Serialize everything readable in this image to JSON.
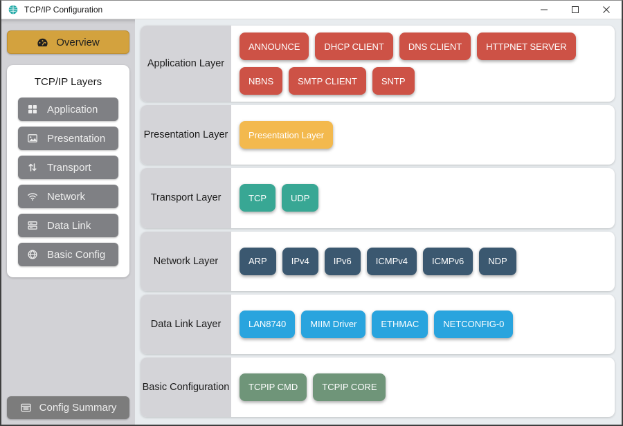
{
  "window": {
    "title": "TCP/IP Configuration",
    "icon": "network-globe-icon",
    "controls": [
      {
        "name": "minimize-button",
        "icon": "minimize-icon"
      },
      {
        "name": "maximize-button",
        "icon": "maximize-icon"
      },
      {
        "name": "close-button",
        "icon": "close-icon"
      }
    ]
  },
  "sidebar": {
    "overview": {
      "label": "Overview",
      "icon": "gauge-icon",
      "color": "#d3a23e"
    },
    "panel_title": "TCP/IP Layers",
    "items": [
      {
        "label": "Application",
        "icon": "grid-icon"
      },
      {
        "label": "Presentation",
        "icon": "image-icon"
      },
      {
        "label": "Transport",
        "icon": "transport-arrows-icon"
      },
      {
        "label": "Network",
        "icon": "wifi-icon"
      },
      {
        "label": "Data Link",
        "icon": "server-icon"
      },
      {
        "label": "Basic Config",
        "icon": "globe-icon"
      }
    ],
    "config_summary": {
      "label": "Config Summary",
      "icon": "list-icon"
    }
  },
  "layers": [
    {
      "name": "Application Layer",
      "color": "#cd5246",
      "modules": [
        "ANNOUNCE",
        "DHCP CLIENT",
        "DNS CLIENT",
        "HTTPNET SERVER",
        "NBNS",
        "SMTP CLIENT",
        "SNTP"
      ]
    },
    {
      "name": "Presentation Layer",
      "color": "#f3b94e",
      "modules": [
        "Presentation Layer"
      ]
    },
    {
      "name": "Transport Layer",
      "color": "#38a794",
      "modules": [
        "TCP",
        "UDP"
      ]
    },
    {
      "name": "Network Layer",
      "color": "#3b5870",
      "modules": [
        "ARP",
        "IPv4",
        "IPv6",
        "ICMPv4",
        "ICMPv6",
        "NDP"
      ]
    },
    {
      "name": "Data Link Layer",
      "color": "#29a4de",
      "modules": [
        "LAN8740",
        "MIIM Driver",
        "ETHMAC",
        "NETCONFIG-0"
      ]
    },
    {
      "name": "Basic Configuration",
      "color": "#6f9579",
      "modules": [
        "TCPIP CMD",
        "TCPIP CORE"
      ]
    }
  ],
  "colors": {
    "sidebar_bg": "#d2d2d6",
    "sidebar_button": "#7f8084",
    "main_bg": "#e8ecef",
    "row_label_bg": "#d4d4d8",
    "accent_gold": "#d3a23e"
  }
}
